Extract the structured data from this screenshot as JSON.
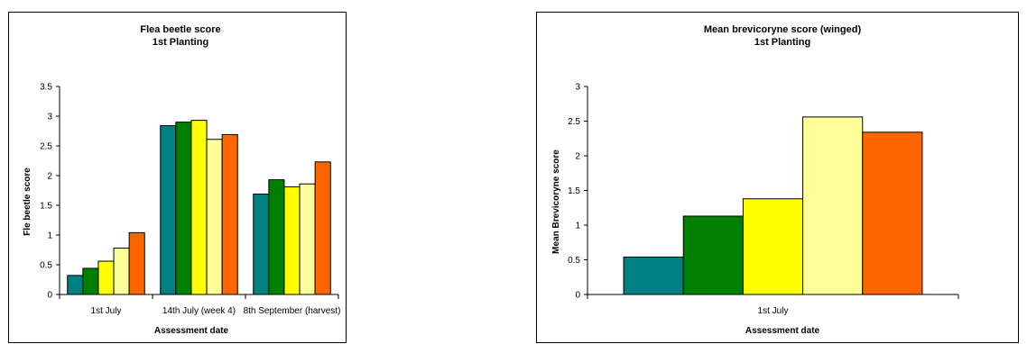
{
  "chart_data": [
    {
      "type": "bar",
      "title": "Flea beetle score",
      "subtitle": "1st Planting",
      "xlabel": "Assessment date",
      "ylabel": "Fle beetle score",
      "ylim": [
        0,
        3.5
      ],
      "yticks": [
        "0",
        "0.5",
        "1",
        "1.5",
        "2",
        "2.5",
        "3",
        "3.5"
      ],
      "categories": [
        "1st July",
        "14th July (week 4)",
        "8th September (harvest)"
      ],
      "series": [
        {
          "color": "#008080",
          "values": [
            0.32,
            2.84,
            1.69
          ]
        },
        {
          "color": "#008000",
          "values": [
            0.44,
            2.9,
            1.93
          ]
        },
        {
          "color": "#FFFF00",
          "values": [
            0.56,
            2.93,
            1.81
          ]
        },
        {
          "color": "#FFFF99",
          "values": [
            0.78,
            2.61,
            1.86
          ]
        },
        {
          "color": "#FF6600",
          "values": [
            1.04,
            2.69,
            2.23
          ]
        }
      ],
      "legend": "none",
      "grid": false
    },
    {
      "type": "bar",
      "title": "Mean brevicoryne score (winged)",
      "subtitle": "1st Planting",
      "xlabel": "Assessment date",
      "ylabel": "Mean Brevicoryne score",
      "ylim": [
        0,
        3
      ],
      "yticks": [
        "0",
        "0.5",
        "1",
        "1.5",
        "2",
        "2.5",
        "3"
      ],
      "categories": [
        "1st July"
      ],
      "series": [
        {
          "color": "#008080",
          "values": [
            0.54
          ]
        },
        {
          "color": "#008000",
          "values": [
            1.13
          ]
        },
        {
          "color": "#FFFF00",
          "values": [
            1.38
          ]
        },
        {
          "color": "#FFFF99",
          "values": [
            2.56
          ]
        },
        {
          "color": "#FF6600",
          "values": [
            2.34
          ]
        }
      ],
      "legend": "none",
      "grid": false
    }
  ]
}
